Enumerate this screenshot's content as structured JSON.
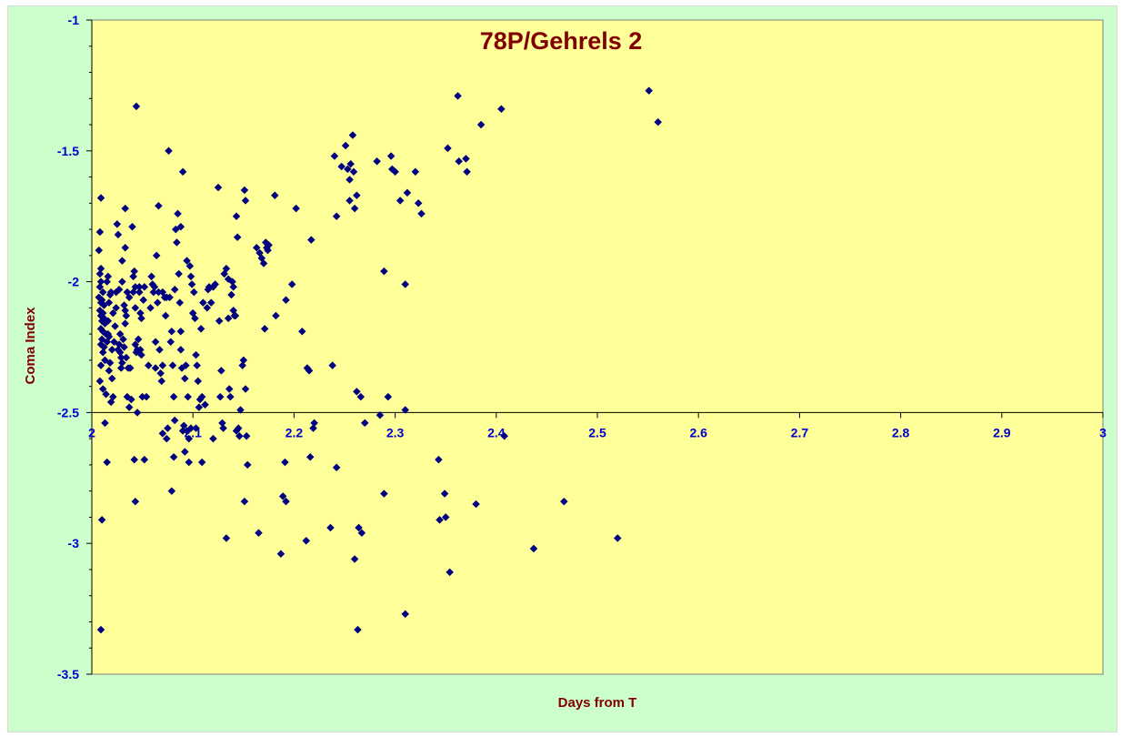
{
  "chart_data": {
    "type": "scatter",
    "title": "78P/Gehrels 2",
    "xlabel": "Days from T",
    "ylabel": "Coma Index",
    "xlim": [
      2,
      3
    ],
    "ylim": [
      -3.5,
      -1
    ],
    "x_ticks": [
      "2",
      "2.1",
      "2.2",
      "2.3",
      "2.4",
      "2.5",
      "2.6",
      "2.7",
      "2.8",
      "2.9",
      "3"
    ],
    "y_ticks": [
      "-1",
      "-1.5",
      "-2",
      "-2.5",
      "-3",
      "-3.5"
    ],
    "x_axis_crosses_at": -2.5,
    "grid": false,
    "legend": "none",
    "colors": {
      "background": "#ccffcc",
      "plot_area": "#ffff99",
      "marker": "#000080",
      "title": "#800000",
      "ticks": "#0000cc"
    },
    "marker": "diamond",
    "points": [
      [
        2.009,
        -1.68
      ],
      [
        2.008,
        -1.81
      ],
      [
        2.007,
        -1.88
      ],
      [
        2.009,
        -1.95
      ],
      [
        2.008,
        -1.97
      ],
      [
        2.009,
        -2.0
      ],
      [
        2.008,
        -2.02
      ],
      [
        2.011,
        -2.04
      ],
      [
        2.007,
        -2.06
      ],
      [
        2.01,
        -2.07
      ],
      [
        2.009,
        -2.08
      ],
      [
        2.012,
        -2.09
      ],
      [
        2.008,
        -2.11
      ],
      [
        2.011,
        -2.12
      ],
      [
        2.009,
        -2.13
      ],
      [
        2.012,
        -2.14
      ],
      [
        2.01,
        -2.15
      ],
      [
        2.013,
        -2.16
      ],
      [
        2.009,
        -2.18
      ],
      [
        2.011,
        -2.19
      ],
      [
        2.014,
        -2.2
      ],
      [
        2.01,
        -2.22
      ],
      [
        2.009,
        -2.24
      ],
      [
        2.012,
        -2.25
      ],
      [
        2.011,
        -2.27
      ],
      [
        2.009,
        -2.32
      ],
      [
        2.013,
        -2.3
      ],
      [
        2.008,
        -2.38
      ],
      [
        2.011,
        -2.41
      ],
      [
        2.014,
        -2.43
      ],
      [
        2.016,
        -2.2
      ],
      [
        2.017,
        -2.21
      ],
      [
        2.015,
        -2.23
      ],
      [
        2.018,
        -2.05
      ],
      [
        2.015,
        -2.0
      ],
      [
        2.016,
        -1.98
      ],
      [
        2.019,
        -2.04
      ],
      [
        2.017,
        -2.08
      ],
      [
        2.016,
        -2.15
      ],
      [
        2.018,
        -2.31
      ],
      [
        2.017,
        -2.34
      ],
      [
        2.019,
        -2.46
      ],
      [
        2.021,
        -2.44
      ],
      [
        2.02,
        -2.37
      ],
      [
        2.02,
        -2.26
      ],
      [
        2.022,
        -2.23
      ],
      [
        2.021,
        -2.12
      ],
      [
        2.023,
        -2.17
      ],
      [
        2.024,
        -2.1
      ],
      [
        2.024,
        -2.04
      ],
      [
        2.025,
        -1.78
      ],
      [
        2.026,
        -1.82
      ],
      [
        2.027,
        -2.03
      ],
      [
        2.028,
        -2.2
      ],
      [
        2.027,
        -2.24
      ],
      [
        2.026,
        -2.26
      ],
      [
        2.028,
        -2.27
      ],
      [
        2.029,
        -2.29
      ],
      [
        2.029,
        -2.33
      ],
      [
        2.03,
        -1.92
      ],
      [
        2.03,
        -2.0
      ],
      [
        2.031,
        -2.22
      ],
      [
        2.032,
        -2.25
      ],
      [
        2.03,
        -2.31
      ],
      [
        2.033,
        -1.72
      ],
      [
        2.033,
        -1.87
      ],
      [
        2.032,
        -2.09
      ],
      [
        2.033,
        -2.11
      ],
      [
        2.034,
        -2.13
      ],
      [
        2.033,
        -2.16
      ],
      [
        2.035,
        -2.04
      ],
      [
        2.034,
        -2.29
      ],
      [
        2.036,
        -2.33
      ],
      [
        2.035,
        -2.44
      ],
      [
        2.037,
        -2.48
      ],
      [
        2.039,
        -2.45
      ],
      [
        2.038,
        -2.33
      ],
      [
        2.037,
        -2.06
      ],
      [
        2.04,
        -1.79
      ],
      [
        2.041,
        -1.98
      ],
      [
        2.042,
        -1.96
      ],
      [
        2.041,
        -2.04
      ],
      [
        2.043,
        -2.02
      ],
      [
        2.043,
        -2.1
      ],
      [
        2.043,
        -2.24
      ],
      [
        2.044,
        -2.27
      ],
      [
        2.045,
        -2.26
      ],
      [
        2.044,
        -1.33
      ],
      [
        2.045,
        -2.5
      ],
      [
        2.046,
        -2.22
      ],
      [
        2.047,
        -2.02
      ],
      [
        2.047,
        -2.04
      ],
      [
        2.048,
        -2.12
      ],
      [
        2.049,
        -2.14
      ],
      [
        2.048,
        -2.26
      ],
      [
        2.049,
        -2.28
      ],
      [
        2.05,
        -2.44
      ],
      [
        2.051,
        -2.07
      ],
      [
        2.052,
        -2.02
      ],
      [
        2.054,
        -2.44
      ],
      [
        2.056,
        -2.32
      ],
      [
        2.058,
        -2.1
      ],
      [
        2.059,
        -1.98
      ],
      [
        2.06,
        -2.01
      ],
      [
        2.061,
        -2.04
      ],
      [
        2.062,
        -2.02
      ],
      [
        2.063,
        -2.33
      ],
      [
        2.063,
        -2.23
      ],
      [
        2.064,
        -1.9
      ],
      [
        2.065,
        -2.08
      ],
      [
        2.066,
        -1.71
      ],
      [
        2.066,
        -2.04
      ],
      [
        2.067,
        -2.26
      ],
      [
        2.068,
        -2.35
      ],
      [
        2.069,
        -2.38
      ],
      [
        2.07,
        -2.04
      ],
      [
        2.07,
        -2.32
      ],
      [
        2.072,
        -2.06
      ],
      [
        2.073,
        -2.13
      ],
      [
        2.074,
        -2.06
      ],
      [
        2.074,
        -2.6
      ],
      [
        2.075,
        -2.56
      ],
      [
        2.076,
        -1.5
      ],
      [
        2.077,
        -2.06
      ],
      [
        2.078,
        -2.23
      ],
      [
        2.079,
        -2.19
      ],
      [
        2.08,
        -2.32
      ],
      [
        2.081,
        -2.44
      ],
      [
        2.082,
        -2.53
      ],
      [
        2.082,
        -2.03
      ],
      [
        2.083,
        -1.8
      ],
      [
        2.084,
        -1.85
      ],
      [
        2.085,
        -1.74
      ],
      [
        2.086,
        -1.97
      ],
      [
        2.087,
        -2.08
      ],
      [
        2.088,
        -2.19
      ],
      [
        2.088,
        -2.26
      ],
      [
        2.088,
        -1.79
      ],
      [
        2.089,
        -2.33
      ],
      [
        2.09,
        -1.58
      ],
      [
        2.09,
        -2.57
      ],
      [
        2.091,
        -2.55
      ],
      [
        2.092,
        -2.37
      ],
      [
        2.093,
        -2.32
      ],
      [
        2.094,
        -2.57
      ],
      [
        2.094,
        -1.92
      ],
      [
        2.095,
        -2.44
      ],
      [
        2.096,
        -2.6
      ],
      [
        2.097,
        -1.94
      ],
      [
        2.098,
        -2.56
      ],
      [
        2.098,
        -1.98
      ],
      [
        2.099,
        -2.01
      ],
      [
        2.1,
        -2.12
      ],
      [
        2.101,
        -2.04
      ],
      [
        2.102,
        -2.14
      ],
      [
        2.103,
        -2.28
      ],
      [
        2.104,
        -2.32
      ],
      [
        2.105,
        -2.38
      ],
      [
        2.106,
        -2.48
      ],
      [
        2.107,
        -2.45
      ],
      [
        2.108,
        -2.18
      ],
      [
        2.109,
        -2.44
      ],
      [
        2.11,
        -2.08
      ],
      [
        2.112,
        -2.47
      ],
      [
        2.114,
        -2.1
      ],
      [
        2.115,
        -2.03
      ],
      [
        2.116,
        -2.02
      ],
      [
        2.118,
        -2.08
      ],
      [
        2.12,
        -2.02
      ],
      [
        2.122,
        -2.01
      ],
      [
        2.125,
        -1.64
      ],
      [
        2.126,
        -2.15
      ],
      [
        2.127,
        -2.44
      ],
      [
        2.128,
        -2.34
      ],
      [
        2.129,
        -2.54
      ],
      [
        2.13,
        -2.56
      ],
      [
        2.131,
        -1.97
      ],
      [
        2.133,
        -1.95
      ],
      [
        2.135,
        -2.14
      ],
      [
        2.135,
        -1.99
      ],
      [
        2.136,
        -2.41
      ],
      [
        2.137,
        -2.44
      ],
      [
        2.138,
        -2.05
      ],
      [
        2.139,
        -2.0
      ],
      [
        2.14,
        -2.02
      ],
      [
        2.14,
        -2.11
      ],
      [
        2.141,
        -2.13
      ],
      [
        2.142,
        -2.13
      ],
      [
        2.143,
        -1.75
      ],
      [
        2.144,
        -1.83
      ],
      [
        2.145,
        -2.56
      ],
      [
        2.146,
        -2.59
      ],
      [
        2.147,
        -2.49
      ],
      [
        2.149,
        -2.32
      ],
      [
        2.15,
        -2.3
      ],
      [
        2.151,
        -1.65
      ],
      [
        2.152,
        -1.69
      ],
      [
        2.152,
        -2.41
      ],
      [
        2.153,
        -2.59
      ],
      [
        2.163,
        -1.87
      ],
      [
        2.166,
        -1.89
      ],
      [
        2.168,
        -1.91
      ],
      [
        2.17,
        -1.93
      ],
      [
        2.172,
        -1.85
      ],
      [
        2.173,
        -1.87
      ],
      [
        2.174,
        -1.88
      ],
      [
        2.175,
        -1.86
      ],
      [
        2.171,
        -2.18
      ],
      [
        2.181,
        -1.67
      ],
      [
        2.182,
        -2.13
      ],
      [
        2.192,
        -2.07
      ],
      [
        2.198,
        -2.01
      ],
      [
        2.202,
        -1.72
      ],
      [
        2.208,
        -2.19
      ],
      [
        2.213,
        -2.33
      ],
      [
        2.215,
        -2.34
      ],
      [
        2.217,
        -1.84
      ],
      [
        2.219,
        -2.56
      ],
      [
        2.22,
        -2.54
      ],
      [
        2.238,
        -2.32
      ],
      [
        2.24,
        -1.52
      ],
      [
        2.242,
        -1.75
      ],
      [
        2.247,
        -1.56
      ],
      [
        2.251,
        -1.48
      ],
      [
        2.253,
        -1.57
      ],
      [
        2.255,
        -1.61
      ],
      [
        2.255,
        -1.69
      ],
      [
        2.256,
        -1.55
      ],
      [
        2.258,
        -1.44
      ],
      [
        2.259,
        -1.58
      ],
      [
        2.26,
        -1.72
      ],
      [
        2.262,
        -1.67
      ],
      [
        2.262,
        -2.42
      ],
      [
        2.266,
        -2.44
      ],
      [
        2.27,
        -2.54
      ],
      [
        2.282,
        -1.54
      ],
      [
        2.285,
        -2.51
      ],
      [
        2.289,
        -1.96
      ],
      [
        2.293,
        -2.44
      ],
      [
        2.296,
        -1.52
      ],
      [
        2.297,
        -1.57
      ],
      [
        2.3,
        -1.58
      ],
      [
        2.305,
        -1.69
      ],
      [
        2.31,
        -2.49
      ],
      [
        2.31,
        -2.01
      ],
      [
        2.312,
        -1.66
      ],
      [
        2.32,
        -1.58
      ],
      [
        2.323,
        -1.7
      ],
      [
        2.326,
        -1.74
      ],
      [
        2.352,
        -1.49
      ],
      [
        2.362,
        -1.29
      ],
      [
        2.363,
        -1.54
      ],
      [
        2.37,
        -1.53
      ],
      [
        2.371,
        -1.58
      ],
      [
        2.385,
        -1.4
      ],
      [
        2.405,
        -1.34
      ],
      [
        2.551,
        -1.27
      ],
      [
        2.56,
        -1.39
      ],
      [
        2.013,
        -2.54
      ],
      [
        2.015,
        -2.69
      ],
      [
        2.01,
        -2.91
      ],
      [
        2.009,
        -3.33
      ],
      [
        2.042,
        -2.68
      ],
      [
        2.043,
        -2.84
      ],
      [
        2.052,
        -2.68
      ],
      [
        2.07,
        -2.58
      ],
      [
        2.079,
        -2.8
      ],
      [
        2.081,
        -2.67
      ],
      [
        2.092,
        -2.65
      ],
      [
        2.096,
        -2.69
      ],
      [
        2.103,
        -2.56
      ],
      [
        2.109,
        -2.69
      ],
      [
        2.12,
        -2.6
      ],
      [
        2.133,
        -2.98
      ],
      [
        2.143,
        -2.57
      ],
      [
        2.151,
        -2.84
      ],
      [
        2.154,
        -2.7
      ],
      [
        2.165,
        -2.96
      ],
      [
        2.187,
        -3.04
      ],
      [
        2.189,
        -2.82
      ],
      [
        2.191,
        -2.69
      ],
      [
        2.192,
        -2.84
      ],
      [
        2.212,
        -2.99
      ],
      [
        2.216,
        -2.67
      ],
      [
        2.236,
        -2.94
      ],
      [
        2.242,
        -2.71
      ],
      [
        2.26,
        -3.06
      ],
      [
        2.264,
        -2.94
      ],
      [
        2.263,
        -3.33
      ],
      [
        2.267,
        -2.96
      ],
      [
        2.289,
        -2.81
      ],
      [
        2.31,
        -3.27
      ],
      [
        2.343,
        -2.68
      ],
      [
        2.344,
        -2.91
      ],
      [
        2.349,
        -2.81
      ],
      [
        2.35,
        -2.9
      ],
      [
        2.354,
        -3.11
      ],
      [
        2.38,
        -2.85
      ],
      [
        2.408,
        -2.59
      ],
      [
        2.437,
        -3.02
      ],
      [
        2.467,
        -2.84
      ],
      [
        2.52,
        -2.98
      ]
    ]
  }
}
